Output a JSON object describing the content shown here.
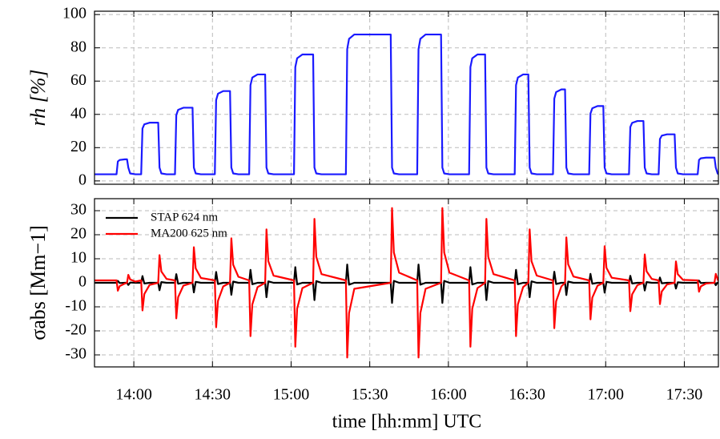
{
  "chart_data": [
    {
      "type": "line",
      "ylabel": "rh [%]",
      "xlim": [
        825,
        1063
      ],
      "ylim": [
        -2,
        102
      ],
      "yticks": [
        0,
        20,
        40,
        60,
        80,
        100
      ],
      "grid": true,
      "x": [
        825,
        833.4,
        833.9,
        834.6,
        836.6,
        837.4,
        837.9,
        838.6,
        840.6,
        842.8,
        843.3,
        844.0,
        846.0,
        849.3,
        849.8,
        850.5,
        852.5,
        855.7,
        856.2,
        856.9,
        858.9,
        862.4,
        862.9,
        863.6,
        865.6,
        870.9,
        871.4,
        872.1,
        874.1,
        876.7,
        877.2,
        877.9,
        879.9,
        884.0,
        884.5,
        885.2,
        887.2,
        890.1,
        890.6,
        891.3,
        893.3,
        901.1,
        901.6,
        902.3,
        904.3,
        908.4,
        908.9,
        909.6,
        911.6,
        920.9,
        921.4,
        922.1,
        924.1,
        938.0,
        938.5,
        939.2,
        941.2,
        948.1,
        948.6,
        949.3,
        951.3,
        957.2,
        957.7,
        958.4,
        960.4,
        967.9,
        968.4,
        969.1,
        971.1,
        974.0,
        974.5,
        975.2,
        977.2,
        985.3,
        985.8,
        986.5,
        988.5,
        990.5,
        991.0,
        991.7,
        993.7,
        999.9,
        1000.4,
        1001.1,
        1003.1,
        1004.5,
        1005.0,
        1005.7,
        1007.7,
        1013.7,
        1014.2,
        1014.9,
        1016.9,
        1019.1,
        1019.6,
        1020.3,
        1022.3,
        1028.9,
        1029.4,
        1030.1,
        1032.1,
        1034.4,
        1034.9,
        1035.6,
        1037.6,
        1040.2,
        1040.7,
        1041.4,
        1043.4,
        1046.3,
        1046.8,
        1047.5,
        1049.5,
        1055.1,
        1055.6,
        1056.3,
        1058.3,
        1061.5,
        1062.0,
        1062.7,
        1063
      ],
      "series": [
        {
          "name": "rh",
          "color": "#1a1aff",
          "values": [
            4,
            4,
            11.7,
            12.6,
            13,
            13,
            8,
            4.5,
            4,
            4,
            31.5,
            34,
            35,
            35,
            8,
            4.5,
            4,
            4,
            39.6,
            42.7,
            44,
            44,
            8,
            4.5,
            4,
            4,
            48.6,
            52.4,
            54,
            54,
            8,
            4.5,
            4,
            4,
            57.6,
            62.1,
            64,
            64,
            8,
            4.5,
            4,
            4,
            68.4,
            73.7,
            76,
            76,
            8,
            4.5,
            4,
            4,
            79.2,
            85.4,
            88,
            88,
            8,
            4.5,
            4,
            4,
            79.2,
            85.4,
            88,
            88,
            8,
            4.5,
            4,
            4,
            68.4,
            73.7,
            76,
            76,
            8,
            4.5,
            4,
            4,
            57.6,
            62.1,
            64,
            64,
            8,
            4.5,
            4,
            4,
            49.5,
            53.4,
            55,
            55,
            8,
            4.5,
            4,
            4,
            40.5,
            43.7,
            45,
            45,
            8,
            4.5,
            4,
            4,
            32.4,
            34.9,
            36,
            36,
            8,
            4.5,
            4,
            4,
            25.2,
            27.2,
            28,
            28,
            8,
            4.5,
            4,
            4,
            12.6,
            13.6,
            14,
            14,
            8,
            4.5,
            4
          ]
        }
      ]
    },
    {
      "type": "line",
      "xlabel": "time [hh:mm] UTC",
      "ylabel": "σabs [Mm−1]",
      "xlim": [
        825,
        1063
      ],
      "ylim": [
        -35,
        35
      ],
      "xticks": [
        {
          "value": 840,
          "label": "14:00"
        },
        {
          "value": 870,
          "label": "14:30"
        },
        {
          "value": 900,
          "label": "15:00"
        },
        {
          "value": 930,
          "label": "15:30"
        },
        {
          "value": 960,
          "label": "16:00"
        },
        {
          "value": 990,
          "label": "16:30"
        },
        {
          "value": 1020,
          "label": "17:00"
        },
        {
          "value": 1050,
          "label": "17:30"
        }
      ],
      "yticks": [
        -30,
        -20,
        -10,
        0,
        10,
        20,
        30
      ],
      "grid": true,
      "legend": "upper left",
      "x": [
        825,
        833.4,
        833.9,
        834.6,
        836.6,
        837.4,
        837.9,
        838.6,
        840.6,
        842.8,
        843.3,
        844.0,
        846.0,
        849.3,
        849.8,
        850.5,
        852.5,
        855.7,
        856.2,
        856.9,
        858.9,
        862.4,
        862.9,
        863.6,
        865.6,
        870.9,
        871.4,
        872.1,
        874.1,
        876.7,
        877.2,
        877.9,
        879.9,
        884.0,
        884.5,
        885.2,
        887.2,
        890.1,
        890.6,
        891.3,
        893.3,
        901.1,
        901.6,
        902.3,
        904.3,
        908.4,
        908.9,
        909.6,
        911.6,
        920.9,
        921.4,
        922.1,
        924.1,
        938.0,
        938.5,
        939.2,
        941.2,
        948.1,
        948.6,
        949.3,
        951.3,
        957.2,
        957.7,
        958.4,
        960.4,
        967.9,
        968.4,
        969.1,
        971.1,
        974.0,
        974.5,
        975.2,
        977.2,
        985.3,
        985.8,
        986.5,
        988.5,
        990.5,
        991.0,
        991.7,
        993.7,
        999.9,
        1000.4,
        1001.1,
        1003.1,
        1004.5,
        1005.0,
        1005.7,
        1007.7,
        1013.7,
        1014.2,
        1014.9,
        1016.9,
        1019.1,
        1019.6,
        1020.3,
        1022.3,
        1028.9,
        1029.4,
        1030.1,
        1032.1,
        1034.4,
        1034.9,
        1035.6,
        1037.6,
        1040.2,
        1040.7,
        1041.4,
        1043.4,
        1046.3,
        1046.8,
        1047.5,
        1049.5,
        1055.1,
        1055.6,
        1056.3,
        1058.3,
        1061.5,
        1062.0,
        1062.7,
        1063
      ],
      "series": [
        {
          "name": "STAP 624 nm",
          "color": "#000000",
          "values": [
            0,
            0,
            0.8,
            -0.1,
            0,
            0,
            -0.9,
            0.1,
            0,
            0,
            2.8,
            -0.3,
            0,
            0,
            -3.1,
            0.3,
            0,
            0,
            3.6,
            -0.4,
            0,
            0,
            -4,
            0.4,
            0,
            0,
            4.5,
            -0.5,
            0,
            0,
            -5,
            0.5,
            0,
            0,
            5.4,
            -0.6,
            0,
            0,
            -6,
            0.6,
            0,
            0,
            6.5,
            -0.7,
            0,
            0,
            -7.2,
            0.7,
            0,
            0,
            7.6,
            -0.8,
            0,
            0,
            -8.4,
            0.8,
            0,
            0,
            7.6,
            -0.8,
            0,
            0,
            -8.4,
            0.8,
            0,
            0,
            6.5,
            -0.7,
            0,
            0,
            -7.2,
            0.7,
            0,
            0,
            5.4,
            -0.6,
            0,
            0,
            -6,
            0.6,
            0,
            0,
            4.6,
            -0.5,
            0,
            0,
            -5.1,
            0.5,
            0,
            0,
            3.7,
            -0.4,
            0,
            0,
            -4.1,
            0.4,
            0,
            0,
            2.9,
            -0.3,
            0,
            0,
            -3.2,
            0.3,
            0,
            0,
            2.2,
            -0.2,
            0,
            0,
            -2.4,
            0.2,
            0,
            0,
            0.9,
            -0.1,
            0,
            0,
            -1,
            0.1,
            0
          ]
        },
        {
          "name": "MA200 625 nm",
          "color": "#ff0000",
          "values": [
            1,
            1,
            -3.3,
            -1.4,
            -0.3,
            0,
            3.3,
            1.4,
            0.5,
            1,
            -11.5,
            -4.7,
            -0.9,
            0,
            11.5,
            4.7,
            1.6,
            1,
            -14.8,
            -6,
            -1.2,
            0,
            14.8,
            6,
            2,
            1,
            -18.5,
            -7.5,
            -1.5,
            0,
            18.5,
            7.5,
            2.5,
            1,
            -22.2,
            -9,
            -1.8,
            0,
            22.2,
            9,
            3,
            1,
            -26.6,
            -10.8,
            -2.2,
            0,
            26.6,
            10.8,
            3.6,
            1,
            -31.1,
            -12.6,
            -2.5,
            0,
            31.1,
            12.6,
            4.2,
            1,
            -31.1,
            -12.6,
            -2.5,
            0,
            31.1,
            12.6,
            4.2,
            1,
            -26.6,
            -10.8,
            -2.2,
            0,
            26.6,
            10.8,
            3.6,
            1,
            -22.2,
            -9,
            -1.8,
            0,
            22.2,
            9,
            3,
            1,
            -18.9,
            -7.7,
            -1.5,
            0,
            18.9,
            7.7,
            2.6,
            1,
            -15.2,
            -6.2,
            -1.2,
            0,
            15.2,
            6.2,
            2.1,
            1,
            -11.8,
            -4.8,
            -1,
            0,
            11.8,
            4.8,
            1.6,
            1,
            -8.9,
            -3.6,
            -0.7,
            0,
            8.9,
            3.6,
            1.2,
            1,
            -3.7,
            -1.5,
            -0.3,
            0,
            3.7,
            1.5,
            0.8
          ]
        }
      ]
    }
  ]
}
